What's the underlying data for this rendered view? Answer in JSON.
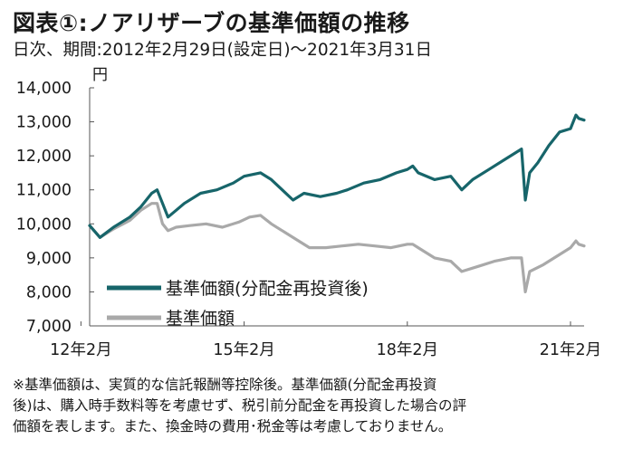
{
  "title": "図表①:ノアリザーブの基準価額の推移",
  "subtitle": "日次、期間:2012年2月29日(設定日)～2021年3月31日",
  "unit": "円",
  "note": [
    "※基準価額は、実質的な信託報酬等控除後。基準価額(分配金再投資",
    "後)は、購入時手数料等を考慮せず、税引前分配金を再投資した場合の評",
    "価額を表します。また、換金時の費用･税金等は考慮しておりません。"
  ],
  "colors": {
    "reinvested": "#17656a",
    "nav": "#a9a9a9"
  },
  "chart_data": {
    "type": "line",
    "title": "図表①:ノアリザーブの基準価額の推移",
    "xlabel": "",
    "ylabel": "円",
    "ylim": [
      7000,
      14000
    ],
    "xlim": [
      2012.16,
      2021.25
    ],
    "yticks": [
      7000,
      8000,
      9000,
      10000,
      11000,
      12000,
      13000,
      14000
    ],
    "ytick_labels": [
      "7,000",
      "8,000",
      "9,000",
      "10,000",
      "11,000",
      "12,000",
      "13,000",
      "14,000"
    ],
    "xticks": [
      2012.0,
      2015.0,
      2018.0,
      2021.0
    ],
    "xtick_labels": [
      "12年2月",
      "15年2月",
      "18年2月",
      "21年2月"
    ],
    "grid": false,
    "legend_position": "lower-left",
    "series": [
      {
        "name": "基準価額(分配金再投資後)",
        "color": "#17656a",
        "x": [
          2012.16,
          2012.35,
          2012.6,
          2012.9,
          2013.1,
          2013.3,
          2013.4,
          2013.5,
          2013.6,
          2013.75,
          2013.9,
          2014.2,
          2014.5,
          2014.8,
          2015.0,
          2015.3,
          2015.5,
          2015.7,
          2015.9,
          2016.1,
          2016.4,
          2016.7,
          2016.9,
          2017.2,
          2017.5,
          2017.8,
          2018.0,
          2018.1,
          2018.2,
          2018.5,
          2018.8,
          2019.0,
          2019.2,
          2019.5,
          2019.8,
          2020.0,
          2020.1,
          2020.17,
          2020.25,
          2020.4,
          2020.6,
          2020.8,
          2021.0,
          2021.1,
          2021.15,
          2021.25
        ],
        "values": [
          9950,
          9600,
          9900,
          10200,
          10500,
          10900,
          11000,
          10600,
          10200,
          10400,
          10600,
          10900,
          11000,
          11200,
          11400,
          11500,
          11300,
          11000,
          10700,
          10900,
          10800,
          10900,
          11000,
          11200,
          11300,
          11500,
          11600,
          11700,
          11500,
          11300,
          11400,
          11000,
          11300,
          11600,
          11900,
          12100,
          12200,
          10700,
          11500,
          11800,
          12300,
          12700,
          12800,
          13200,
          13100,
          13050
        ]
      },
      {
        "name": "基準価額",
        "color": "#a9a9a9",
        "x": [
          2012.16,
          2012.35,
          2012.6,
          2012.9,
          2013.1,
          2013.3,
          2013.4,
          2013.5,
          2013.6,
          2013.75,
          2014.0,
          2014.3,
          2014.6,
          2014.9,
          2015.1,
          2015.3,
          2015.5,
          2015.7,
          2016.0,
          2016.2,
          2016.5,
          2016.8,
          2017.1,
          2017.4,
          2017.7,
          2018.0,
          2018.1,
          2018.2,
          2018.5,
          2018.8,
          2019.0,
          2019.3,
          2019.6,
          2019.9,
          2020.1,
          2020.17,
          2020.25,
          2020.5,
          2020.8,
          2021.0,
          2021.1,
          2021.15,
          2021.25
        ],
        "values": [
          9950,
          9600,
          9850,
          10100,
          10400,
          10600,
          10600,
          10000,
          9800,
          9900,
          9950,
          10000,
          9900,
          10050,
          10200,
          10250,
          10000,
          9800,
          9500,
          9300,
          9300,
          9350,
          9400,
          9350,
          9300,
          9400,
          9400,
          9300,
          9000,
          8900,
          8600,
          8750,
          8900,
          9000,
          9000,
          8000,
          8600,
          8800,
          9100,
          9300,
          9500,
          9400,
          9350
        ]
      }
    ]
  }
}
